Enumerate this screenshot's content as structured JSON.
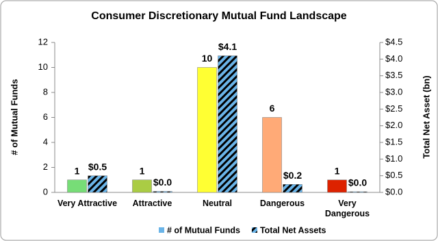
{
  "chart_data": {
    "type": "bar",
    "title": "Consumer Discretionary Mutual Fund Landscape",
    "y_label": "# of Mutual Funds",
    "y2_label": "Total Net Asset (bn)",
    "categories": [
      "Very Attractive",
      "Attractive",
      "Neutral",
      "Dangerous",
      "Very Dangerous"
    ],
    "series": [
      {
        "name": "# of Mutual Funds",
        "color": "#6ab4e8",
        "colors": [
          "#77dd77",
          "#aacc44",
          "#ffff33",
          "#ffaa77",
          "#dd2200"
        ],
        "values": [
          1,
          1,
          10,
          6,
          1
        ]
      },
      {
        "name": "Total Net Assets",
        "color": "#6ab4e8",
        "pattern": "hatch",
        "axis": "y2",
        "values": [
          0.5,
          0.03,
          4.1,
          0.24,
          0.02
        ],
        "value_labels": [
          "$0.5",
          "$0.0",
          "$4.1",
          "$0.2",
          "$0.0"
        ]
      }
    ],
    "ylim": [
      0,
      12
    ],
    "yticks": [
      0,
      2,
      4,
      6,
      8,
      10,
      12
    ],
    "y2lim": [
      0,
      4.5
    ],
    "y2ticks": [
      {
        "value": 0,
        "label": "$0.0"
      },
      {
        "value": 0.5,
        "label": "$0.5"
      },
      {
        "value": 1,
        "label": "$1.0"
      },
      {
        "value": 1.5,
        "label": "$1.5"
      },
      {
        "value": 2,
        "label": "$2.0"
      },
      {
        "value": 2.5,
        "label": "$2.5"
      },
      {
        "value": 3,
        "label": "$3.0"
      },
      {
        "value": 3.5,
        "label": "$3.5"
      },
      {
        "value": 4,
        "label": "$4.0"
      },
      {
        "value": 4.5,
        "label": "$4.5"
      }
    ],
    "legend": "bottom"
  }
}
